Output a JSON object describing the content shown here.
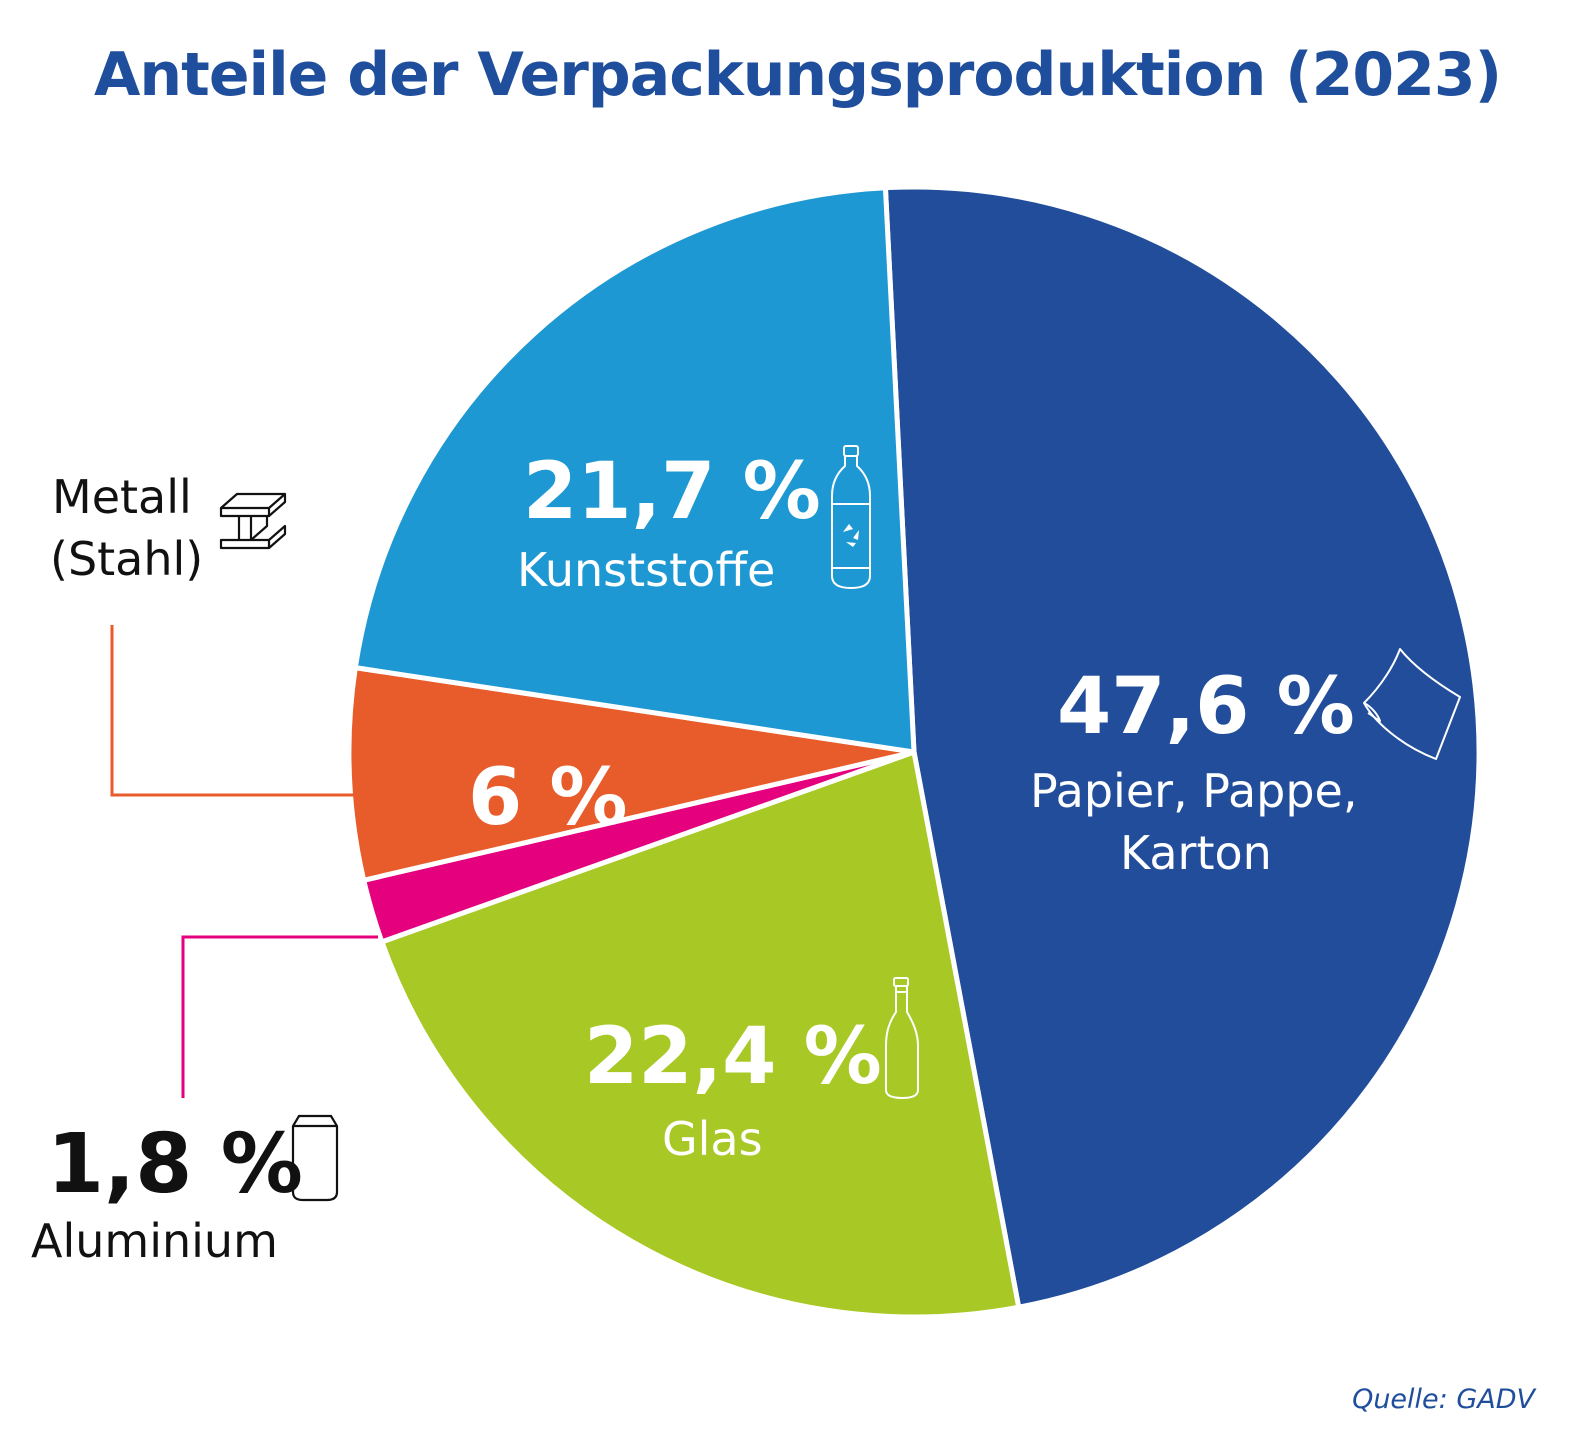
{
  "colors": {
    "title": "#1f4e9c",
    "papier": "#214d9b",
    "kunststoffe": "#1e98d3",
    "metall": "#e85b2a",
    "aluminium": "#e5007e",
    "glas": "#a8c825",
    "source": "#1f4e9c"
  },
  "chart_data": {
    "type": "pie",
    "title": "Anteile der Verpackungsproduktion (2023)",
    "slices": [
      {
        "label": "Papier, Pappe, Karton",
        "label_line1": "Papier, Pappe,",
        "label_line2": "Karton",
        "value": 47.6,
        "value_label": "47,6 %",
        "color": "#214d9b",
        "icon": "paper-sheet-icon"
      },
      {
        "label": "Glas",
        "value": 22.4,
        "value_label": "22,4 %",
        "color": "#a8c825",
        "icon": "glass-bottle-icon"
      },
      {
        "label": "Aluminium",
        "value": 1.8,
        "value_label": "1,8 %",
        "color": "#e5007e",
        "icon": "aluminium-can-icon"
      },
      {
        "label": "Metall (Stahl)",
        "label_line1": "Metall",
        "label_line2": "(Stahl)",
        "value": 6,
        "value_label": "6 %",
        "color": "#e85b2a",
        "icon": "steel-beam-icon"
      },
      {
        "label": "Kunststoffe",
        "value": 21.7,
        "value_label": "21,7 %",
        "color": "#1e98d3",
        "icon": "plastic-bottle-icon"
      }
    ],
    "legend": "none"
  },
  "source": "Quelle: GADV"
}
